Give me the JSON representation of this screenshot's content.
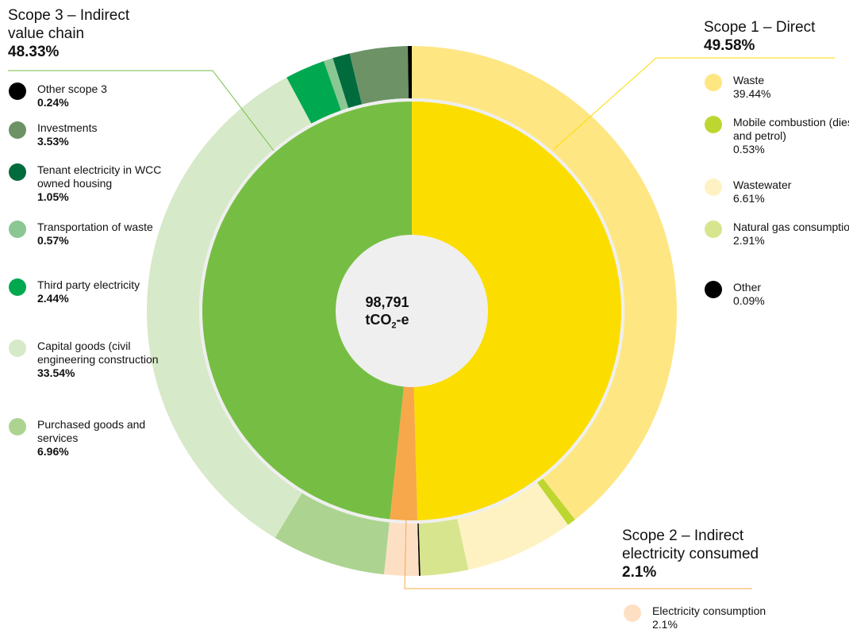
{
  "colors": {
    "scope1": "#fcdd00",
    "scope2": "#f7a84a",
    "scope3": "#76be43",
    "ring_gap": "#efefef",
    "center_fill": "#efefef"
  },
  "center": {
    "value": "98,791",
    "unit_prefix": "tCO",
    "unit_sub": "2",
    "unit_suffix": "-e"
  },
  "headings": {
    "scope1": {
      "title": "Scope 1 – Direct",
      "pct": "49.58%"
    },
    "scope2": {
      "title": "Scope 2 – Indirect electricity consumed",
      "pct": "2.1%"
    },
    "scope3": {
      "title": "Scope 3 – Indirect value chain",
      "pct": "48.33%"
    }
  },
  "legend": {
    "scope3": [
      {
        "label": "Other scope 3",
        "value": "0.24%",
        "color": "#000000"
      },
      {
        "label": "Investments",
        "value": "3.53%",
        "color": "#6c9265"
      },
      {
        "label": "Tenant electricity in WCC owned housing",
        "value": "1.05%",
        "color": "#006b3d"
      },
      {
        "label": "Transportation of waste",
        "value": "0.57%",
        "color": "#8ac792"
      },
      {
        "label": "Third party electricity",
        "value": "2.44%",
        "color": "#00a94f"
      },
      {
        "label": "Capital goods (civil engineering construction",
        "value": "33.54%",
        "color": "#d6e9c8"
      },
      {
        "label": "Purchased goods and services",
        "value": "6.96%",
        "color": "#acd490"
      }
    ],
    "scope1": [
      {
        "label": "Waste",
        "value": "39.44%",
        "color": "#fee683"
      },
      {
        "label": "Mobile combustion (diesel and petrol)",
        "value": "0.53%",
        "color": "#bed630"
      },
      {
        "label": "Wastewater",
        "value": "6.61%",
        "color": "#fef2c3"
      },
      {
        "label": "Natural gas consumption",
        "value": " 2.91%",
        "color": "#d7e58e"
      },
      {
        "label": "Other",
        "value": "0.09%",
        "color": "#000000"
      }
    ],
    "scope2": [
      {
        "label": "Electricity consumption",
        "value": "2.1%",
        "color": "#fde0c4"
      }
    ]
  },
  "chart_data": {
    "type": "pie",
    "subtype": "nested-donut",
    "total": "98,791 tCO2-e",
    "inner": [
      {
        "name": "Scope 1 – Direct",
        "value": 49.58,
        "color": "#fcdd00"
      },
      {
        "name": "Scope 2 – Indirect electricity consumed",
        "value": 2.1,
        "color": "#f7a84a"
      },
      {
        "name": "Scope 3 – Indirect value chain",
        "value": 48.33,
        "color": "#76be43"
      }
    ],
    "outer": [
      {
        "name": "Waste",
        "value": 39.44,
        "color": "#fee683"
      },
      {
        "name": "Mobile combustion (diesel and petrol)",
        "value": 0.53,
        "color": "#bed630"
      },
      {
        "name": "Wastewater",
        "value": 6.61,
        "color": "#fef2c3"
      },
      {
        "name": "Natural gas consumption",
        "value": 2.91,
        "color": "#d7e58e"
      },
      {
        "name": "Other",
        "value": 0.09,
        "color": "#000000"
      },
      {
        "name": "Electricity consumption",
        "value": 2.1,
        "color": "#fde0c4"
      },
      {
        "name": "Purchased goods and services",
        "value": 6.96,
        "color": "#acd490"
      },
      {
        "name": "Capital goods (civil engineering construction",
        "value": 33.54,
        "color": "#d6e9c8"
      },
      {
        "name": "Third party electricity",
        "value": 2.44,
        "color": "#00a94f"
      },
      {
        "name": "Transportation of waste",
        "value": 0.57,
        "color": "#8ac792"
      },
      {
        "name": "Tenant electricity in WCC owned housing",
        "value": 1.05,
        "color": "#006b3d"
      },
      {
        "name": "Investments",
        "value": 3.53,
        "color": "#6c9265"
      },
      {
        "name": "Other scope 3",
        "value": 0.24,
        "color": "#000000"
      }
    ]
  }
}
